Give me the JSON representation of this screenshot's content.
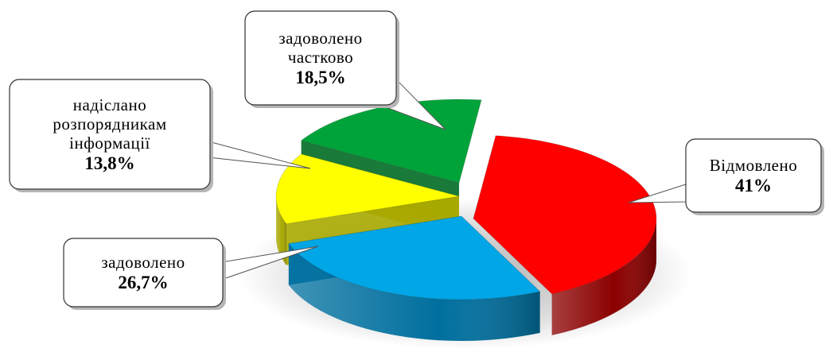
{
  "chart_data": {
    "type": "pie",
    "title": "",
    "slices": [
      {
        "name": "Відмовлено",
        "value": 41,
        "label": "41%",
        "color": "#ff0000",
        "side_color": "#8b0000"
      },
      {
        "name": "задоволено",
        "value": 26.7,
        "label": "26,7%",
        "color": "#00a6e6",
        "side_color": "#006f9e"
      },
      {
        "name": "надіслано розпорядникам інформації",
        "value": 13.8,
        "label": "13,8%",
        "color": "#ffff00",
        "side_color": "#a8a800"
      },
      {
        "name": "задоволено частково",
        "value": 18.5,
        "label": "18,5%",
        "color": "#00a33a",
        "side_color": "#006b24"
      }
    ]
  },
  "callouts": {
    "refused": {
      "lines": [
        "Відмовлено"
      ],
      "value": "41%"
    },
    "satisfied": {
      "lines": [
        "задоволено"
      ],
      "value": "26,7%"
    },
    "forwarded": {
      "lines": [
        "надіслано",
        "розпорядникам",
        "інформації"
      ],
      "value": "13,8%"
    },
    "partial": {
      "lines": [
        "задоволено",
        "частково"
      ],
      "value": "18,5%"
    }
  }
}
